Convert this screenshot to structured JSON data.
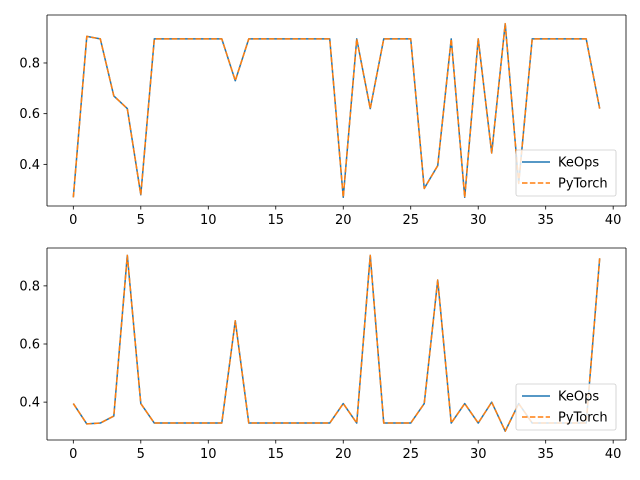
{
  "chart_data": [
    {
      "type": "line",
      "x": [
        0,
        1,
        2,
        3,
        4,
        5,
        6,
        7,
        8,
        9,
        10,
        11,
        12,
        13,
        14,
        15,
        16,
        17,
        18,
        19,
        20,
        21,
        22,
        23,
        24,
        25,
        26,
        27,
        28,
        29,
        30,
        31,
        32,
        33,
        34,
        35,
        36,
        37,
        38,
        39
      ],
      "series": [
        {
          "name": "KeOps",
          "color": "#1f77b4",
          "linestyle": "solid",
          "values": [
            0.27,
            0.905,
            0.895,
            0.67,
            0.62,
            0.28,
            0.895,
            0.895,
            0.895,
            0.895,
            0.895,
            0.895,
            0.73,
            0.895,
            0.895,
            0.895,
            0.895,
            0.895,
            0.895,
            0.895,
            0.27,
            0.895,
            0.62,
            0.895,
            0.895,
            0.895,
            0.305,
            0.395,
            0.895,
            0.27,
            0.895,
            0.445,
            0.955,
            0.325,
            0.895,
            0.895,
            0.895,
            0.895,
            0.895,
            0.62
          ]
        },
        {
          "name": "PyTorch",
          "color": "#ff7f0e",
          "linestyle": "dashed",
          "values": [
            0.27,
            0.905,
            0.895,
            0.67,
            0.62,
            0.28,
            0.895,
            0.895,
            0.895,
            0.895,
            0.895,
            0.895,
            0.73,
            0.895,
            0.895,
            0.895,
            0.895,
            0.895,
            0.895,
            0.895,
            0.27,
            0.895,
            0.62,
            0.895,
            0.895,
            0.895,
            0.305,
            0.395,
            0.895,
            0.27,
            0.895,
            0.445,
            0.955,
            0.325,
            0.895,
            0.895,
            0.895,
            0.895,
            0.895,
            0.62
          ]
        }
      ],
      "xlim": [
        -1.95,
        40.95
      ],
      "ylim": [
        0.2357,
        0.9893
      ],
      "xticks": [
        0,
        5,
        10,
        15,
        20,
        25,
        30,
        35,
        40
      ],
      "yticks": [
        0.4,
        0.6,
        0.8
      ],
      "xtick_labels": [
        "0",
        "5",
        "10",
        "15",
        "20",
        "25",
        "30",
        "35",
        "40"
      ],
      "ytick_labels": [
        "0.4",
        "0.6",
        "0.8"
      ],
      "legend_position": "lower-right",
      "grid": false
    },
    {
      "type": "line",
      "x": [
        0,
        1,
        2,
        3,
        4,
        5,
        6,
        7,
        8,
        9,
        10,
        11,
        12,
        13,
        14,
        15,
        16,
        17,
        18,
        19,
        20,
        21,
        22,
        23,
        24,
        25,
        26,
        27,
        28,
        29,
        30,
        31,
        32,
        33,
        34,
        35,
        36,
        37,
        38,
        39
      ],
      "series": [
        {
          "name": "KeOps",
          "color": "#1f77b4",
          "linestyle": "solid",
          "values": [
            0.395,
            0.325,
            0.328,
            0.352,
            0.905,
            0.395,
            0.328,
            0.328,
            0.328,
            0.328,
            0.328,
            0.328,
            0.68,
            0.328,
            0.328,
            0.328,
            0.328,
            0.328,
            0.328,
            0.328,
            0.395,
            0.328,
            0.905,
            0.328,
            0.328,
            0.328,
            0.395,
            0.82,
            0.328,
            0.395,
            0.328,
            0.4,
            0.3,
            0.395,
            0.328,
            0.328,
            0.328,
            0.328,
            0.328,
            0.895
          ]
        },
        {
          "name": "PyTorch",
          "color": "#ff7f0e",
          "linestyle": "dashed",
          "values": [
            0.395,
            0.325,
            0.328,
            0.352,
            0.905,
            0.395,
            0.328,
            0.328,
            0.328,
            0.328,
            0.328,
            0.328,
            0.68,
            0.328,
            0.328,
            0.328,
            0.328,
            0.328,
            0.328,
            0.328,
            0.395,
            0.328,
            0.905,
            0.328,
            0.328,
            0.328,
            0.395,
            0.82,
            0.328,
            0.395,
            0.328,
            0.4,
            0.3,
            0.395,
            0.328,
            0.328,
            0.328,
            0.328,
            0.328,
            0.895
          ]
        }
      ],
      "xlim": [
        -1.95,
        40.95
      ],
      "ylim": [
        0.2697,
        0.9303
      ],
      "xticks": [
        0,
        5,
        10,
        15,
        20,
        25,
        30,
        35,
        40
      ],
      "yticks": [
        0.4,
        0.6,
        0.8
      ],
      "xtick_labels": [
        "0",
        "5",
        "10",
        "15",
        "20",
        "25",
        "30",
        "35",
        "40"
      ],
      "ytick_labels": [
        "0.4",
        "0.6",
        "0.8"
      ],
      "legend_position": "lower-right",
      "grid": false
    }
  ]
}
